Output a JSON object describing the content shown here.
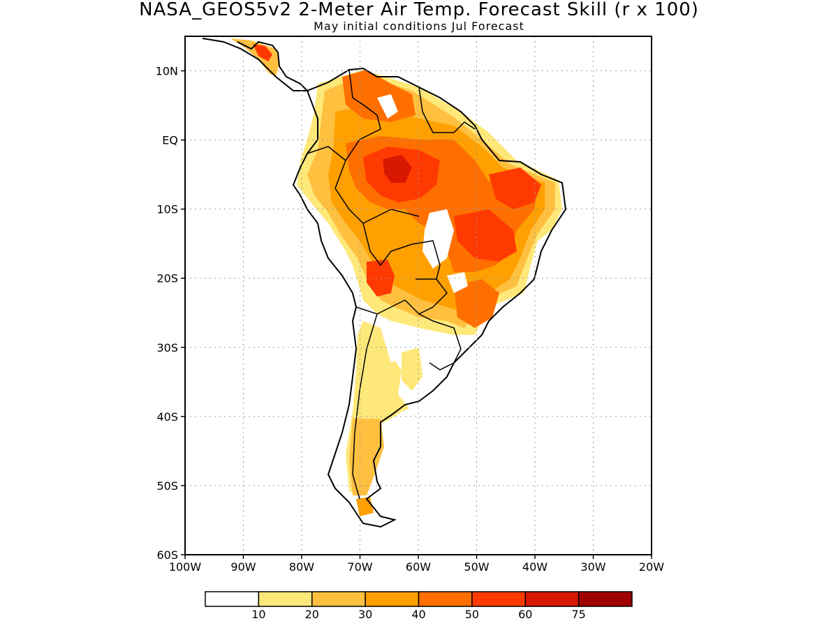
{
  "title": "NASA_GEOS5v2 2-Meter Air Temp. Forecast Skill (r x 100)",
  "subtitle": "May initial conditions  Jul Forecast",
  "map": {
    "region": "South America",
    "grid": true,
    "lon_labels": [
      "100W",
      "90W",
      "80W",
      "70W",
      "60W",
      "50W",
      "40W",
      "30W",
      "20W"
    ],
    "lat_labels": [
      "10N",
      "EQ",
      "10S",
      "20S",
      "30S",
      "40S",
      "50S",
      "60S"
    ]
  },
  "colorbar": {
    "colors": [
      "#ffffff",
      "#ffe87a",
      "#ffc040",
      "#ffa000",
      "#ff6f00",
      "#ff3a00",
      "#d81800",
      "#a00000"
    ],
    "labels": [
      "10",
      "20",
      "30",
      "40",
      "50",
      "60",
      "75"
    ]
  }
}
